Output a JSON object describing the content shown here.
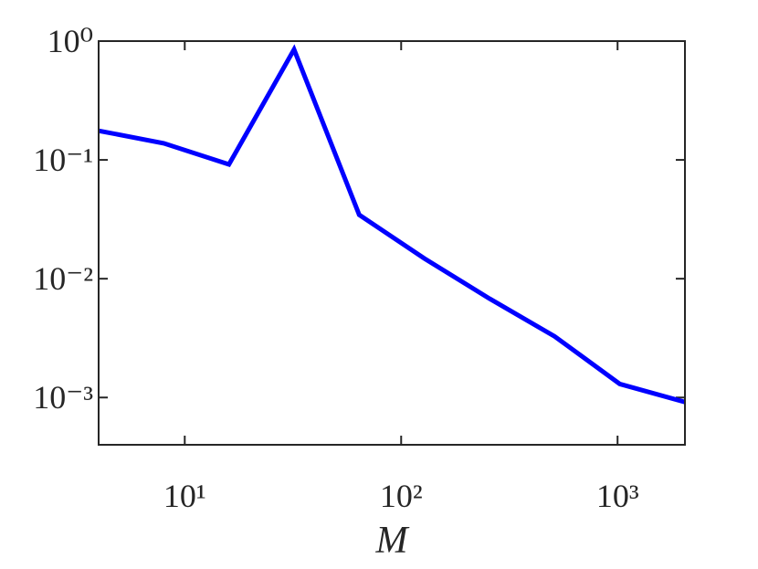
{
  "chart_data": {
    "type": "line",
    "xlabel": "M",
    "xscale": "log",
    "yscale": "log",
    "x": [
      4,
      8,
      16,
      32,
      64,
      128,
      256,
      512,
      1024,
      2048
    ],
    "series": [
      {
        "color": "#0000ff",
        "values": [
          0.176,
          0.138,
          0.0916,
          0.85,
          0.0345,
          0.0148,
          0.0068,
          0.00327,
          0.0013,
          0.000916
        ]
      }
    ],
    "xlim": [
      4,
      2048
    ],
    "ylim": [
      0.0004,
      1
    ],
    "xticks": [
      {
        "value": 10,
        "label": "10¹"
      },
      {
        "value": 100,
        "label": "10²"
      },
      {
        "value": 1000,
        "label": "10³"
      }
    ],
    "yticks": [
      {
        "value": 0.001,
        "label": "10⁻³"
      },
      {
        "value": 0.01,
        "label": "10⁻²"
      },
      {
        "value": 0.1,
        "label": "10⁻¹"
      },
      {
        "value": 1,
        "label": "10⁰"
      }
    ],
    "grid": false
  }
}
